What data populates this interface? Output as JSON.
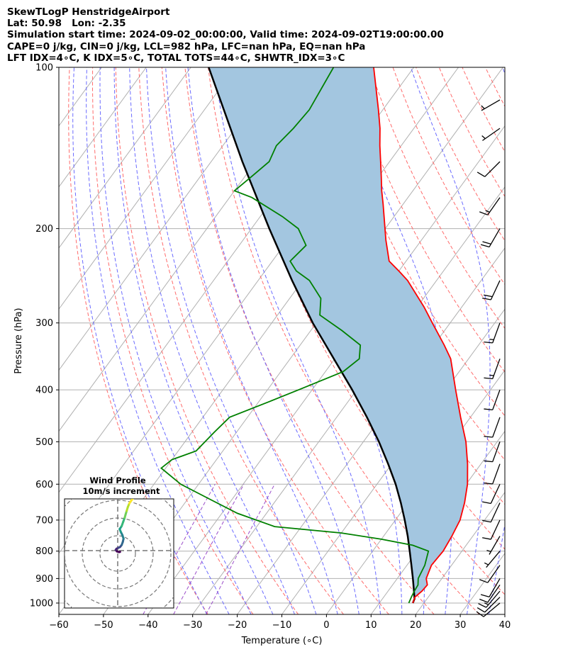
{
  "title_lines": [
    "SkewTLogP HenstridgeAirport",
    "Lat: 50.98   Lon: -2.35",
    "Simulation start time: 2024-09-02_00:00:00, Valid time: 2024-09-02T19:00:00.00",
    "CAPE=0 j/kg, CIN=0 j/kg, LCL=982 hPa, LFC=nan hPa, EQ=nan hPa",
    "LFT IDX=4∘C, K IDX=5∘C, TOTAL TOTS=44∘C, SHWTR_IDX=3∘C"
  ],
  "chart_data": {
    "type": "line",
    "subtype": "skew-t log-p",
    "xlabel": "Temperature (∘C)",
    "ylabel": "Pressure (hPa)",
    "xlim": [
      -60,
      40
    ],
    "ylim": [
      1050,
      100
    ],
    "y_scale": "log",
    "x_ticks": [
      -60,
      -50,
      -40,
      -30,
      -20,
      -10,
      0,
      10,
      20,
      30,
      40
    ],
    "x_tick_labels": [
      "−60",
      "−50",
      "−40",
      "−30",
      "−20",
      "−10",
      "0",
      "10",
      "20",
      "30",
      "40"
    ],
    "y_ticks": [
      1000,
      900,
      800,
      700,
      600,
      500,
      400,
      300,
      200,
      100
    ],
    "y_tick_labels": [
      "1000",
      "900",
      "800",
      "700",
      "600",
      "500",
      "400",
      "300",
      "200",
      "100"
    ],
    "grid": true,
    "colors": {
      "temperature": "#ff0000",
      "dewpoint": "#008000",
      "parcel": "#000000",
      "shading": "#a3c6e0",
      "isotherm": "#b0b0b0",
      "dry_adiabat": "#ff6b6b",
      "moist_adiabat": "#6b6bff",
      "mixing_ratio": "#9b4dca"
    },
    "temperature_profile": {
      "pressure": [
        1000,
        975,
        950,
        925,
        900,
        850,
        800,
        750,
        700,
        650,
        600,
        550,
        500,
        450,
        400,
        350,
        330,
        300,
        280,
        250,
        240,
        230,
        210,
        180,
        170,
        160,
        150,
        140,
        130,
        120,
        100
      ],
      "temperature": [
        17.5,
        17.0,
        17.6,
        17.8,
        16.5,
        15.5,
        15.8,
        15.3,
        14.5,
        12.7,
        10.3,
        7.0,
        3.0,
        -2.2,
        -7.8,
        -14.0,
        -17.7,
        -24.0,
        -28.5,
        -36.5,
        -40.0,
        -43.8,
        -48.0,
        -54.5,
        -57.0,
        -59.4,
        -62.0,
        -64.8,
        -67.6,
        -71.0,
        -79.0
      ]
    },
    "dewpoint_profile": {
      "pressure": [
        1000,
        975,
        950,
        925,
        900,
        850,
        800,
        780,
        760,
        740,
        720,
        680,
        640,
        600,
        560,
        540,
        520,
        480,
        450,
        420,
        400,
        370,
        350,
        330,
        310,
        290,
        270,
        250,
        240,
        230,
        215,
        200,
        190,
        175,
        170,
        160,
        150,
        140,
        130,
        120,
        100
      ],
      "dewpoint": [
        16.6,
        16.2,
        15.9,
        15.7,
        14.7,
        14.0,
        12.5,
        8.0,
        0.0,
        -10.0,
        -26.0,
        -36.5,
        -45.0,
        -54.0,
        -61.0,
        -60.0,
        -56.0,
        -55.0,
        -54.0,
        -47.5,
        -43.0,
        -36.0,
        -34.5,
        -36.5,
        -43.0,
        -50.5,
        -53.0,
        -58.5,
        -63.0,
        -66.0,
        -65.0,
        -69.5,
        -75.0,
        -85.0,
        -90.0,
        -88.5,
        -87.0,
        -88.0,
        -87.0,
        -86.5,
        -88.0
      ]
    },
    "parcel_profile": {
      "pressure": [
        1000,
        982,
        950,
        900,
        850,
        800,
        750,
        700,
        650,
        600,
        550,
        500,
        450,
        400,
        350,
        300,
        250,
        200,
        150,
        100
      ],
      "temperature": [
        17.5,
        17.2,
        15.8,
        13.5,
        11.0,
        8.3,
        5.4,
        2.1,
        -1.6,
        -5.8,
        -10.8,
        -16.5,
        -23.2,
        -31.0,
        -40.2,
        -50.8,
        -62.4,
        -76.0,
        -93.0,
        -116.0
      ]
    },
    "wind_barbs": [
      {
        "pressure": 1000,
        "speed_kt": 12,
        "direction_deg": 230
      },
      {
        "pressure": 975,
        "speed_kt": 14,
        "direction_deg": 225
      },
      {
        "pressure": 950,
        "speed_kt": 15,
        "direction_deg": 220
      },
      {
        "pressure": 925,
        "speed_kt": 14,
        "direction_deg": 215
      },
      {
        "pressure": 900,
        "speed_kt": 12,
        "direction_deg": 210
      },
      {
        "pressure": 850,
        "speed_kt": 10,
        "direction_deg": 215
      },
      {
        "pressure": 800,
        "speed_kt": 8,
        "direction_deg": 220
      },
      {
        "pressure": 750,
        "speed_kt": 8,
        "direction_deg": 210
      },
      {
        "pressure": 700,
        "speed_kt": 10,
        "direction_deg": 205
      },
      {
        "pressure": 650,
        "speed_kt": 12,
        "direction_deg": 205
      },
      {
        "pressure": 600,
        "speed_kt": 10,
        "direction_deg": 205
      },
      {
        "pressure": 550,
        "speed_kt": 10,
        "direction_deg": 200
      },
      {
        "pressure": 500,
        "speed_kt": 12,
        "direction_deg": 200
      },
      {
        "pressure": 450,
        "speed_kt": 14,
        "direction_deg": 200
      },
      {
        "pressure": 400,
        "speed_kt": 14,
        "direction_deg": 200
      },
      {
        "pressure": 350,
        "speed_kt": 15,
        "direction_deg": 200
      },
      {
        "pressure": 300,
        "speed_kt": 18,
        "direction_deg": 200
      },
      {
        "pressure": 250,
        "speed_kt": 20,
        "direction_deg": 205
      },
      {
        "pressure": 200,
        "speed_kt": 20,
        "direction_deg": 210
      },
      {
        "pressure": 175,
        "speed_kt": 18,
        "direction_deg": 215
      },
      {
        "pressure": 150,
        "speed_kt": 12,
        "direction_deg": 225
      },
      {
        "pressure": 130,
        "speed_kt": 8,
        "direction_deg": 235
      },
      {
        "pressure": 115,
        "speed_kt": 8,
        "direction_deg": 240
      }
    ],
    "hodograph": {
      "title": "Wind Profile",
      "subtitle": "10m/s increment",
      "ring_spacing_ms": 10,
      "u": [
        0.6,
        0.4,
        -0.2,
        -0.5,
        -0.3,
        0.2,
        0.6,
        1.0,
        1.3,
        1.5,
        1.2,
        0.8,
        0.5,
        1.0,
        1.4,
        1.8,
        2.0,
        2.3,
        2.6,
        3.0,
        3.6,
        4.0
      ],
      "v": [
        -0.5,
        -0.6,
        -0.3,
        0.3,
        0.8,
        1.2,
        1.5,
        2.3,
        3.6,
        5.0,
        6.5,
        7.8,
        9.0,
        10.2,
        12.0,
        13.8,
        15.0,
        16.6,
        18.2,
        19.8,
        21.2,
        22.0
      ],
      "colormap": "viridis"
    }
  }
}
